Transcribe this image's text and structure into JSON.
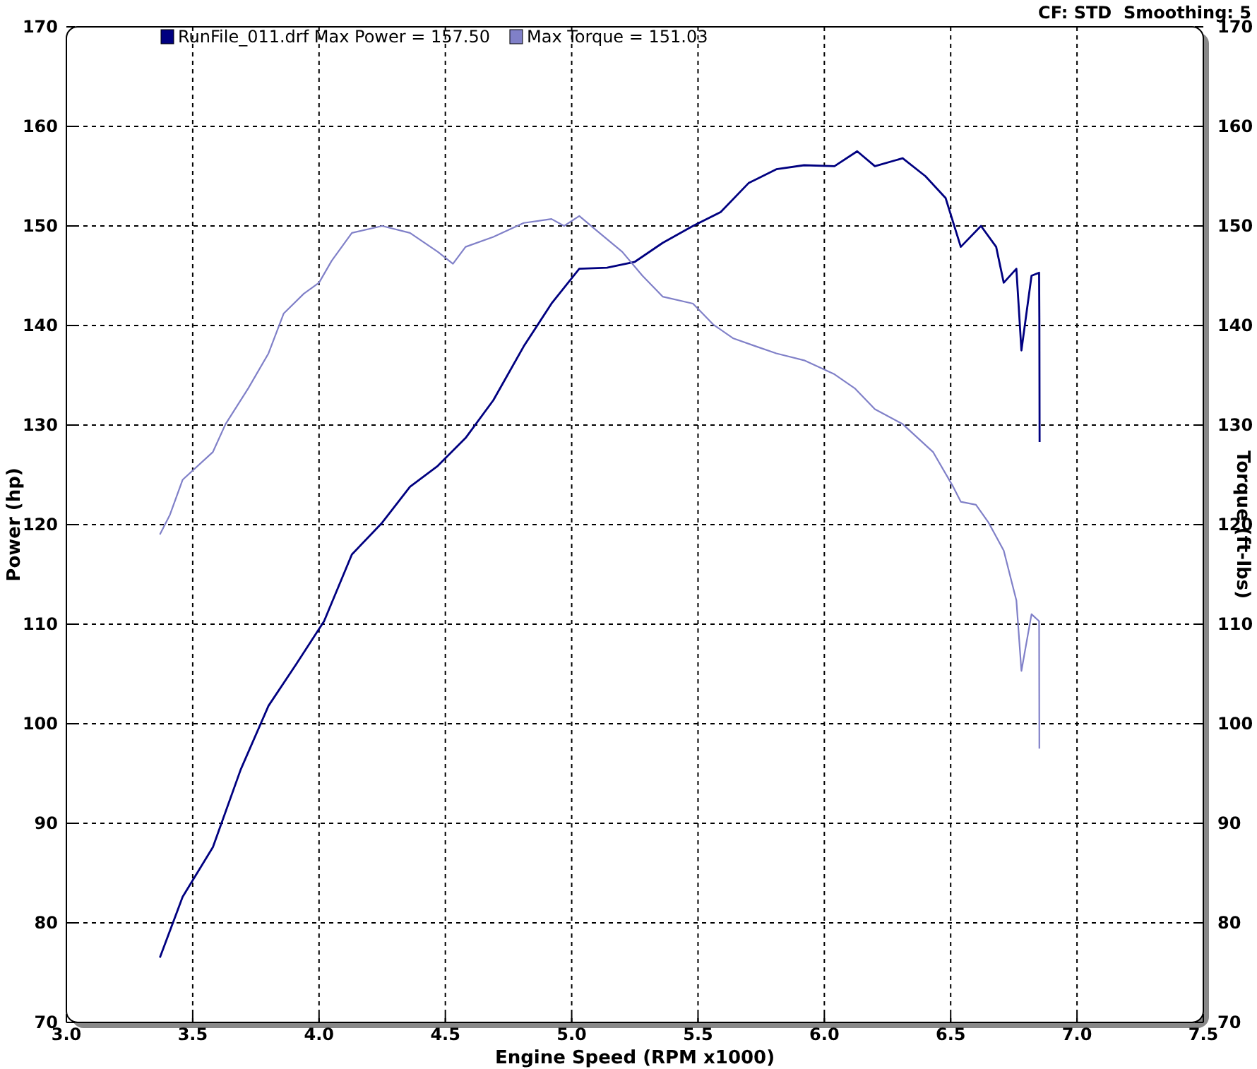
{
  "chart_data": {
    "type": "line",
    "xlabel": "Engine Speed (RPM x1000)",
    "ylabel": "Power (hp)",
    "y2label": "Torque (ft-lbs)",
    "annotations": [
      "CF: STD  Smoothing: 5"
    ],
    "xlim": [
      3.0,
      7.5
    ],
    "xticks": [
      {
        "value": 3.0,
        "label": "3.0"
      },
      {
        "value": 3.5,
        "label": "3.5"
      },
      {
        "value": 4.0,
        "label": "4.0"
      },
      {
        "value": 4.5,
        "label": "4.5"
      },
      {
        "value": 5.0,
        "label": "5.0"
      },
      {
        "value": 5.5,
        "label": "5.5"
      },
      {
        "value": 6.0,
        "label": "6.0"
      },
      {
        "value": 6.5,
        "label": "6.5"
      },
      {
        "value": 7.0,
        "label": "7.0"
      },
      {
        "value": 7.5,
        "label": "7.5"
      }
    ],
    "ylim": [
      70,
      170
    ],
    "yticks": [
      70,
      80,
      90,
      100,
      110,
      120,
      130,
      140,
      150,
      160,
      170
    ],
    "y2lim": [
      70,
      170
    ],
    "y2ticks": [
      70,
      80,
      90,
      100,
      110,
      120,
      130,
      140,
      150,
      160,
      170
    ],
    "grid": true,
    "legend": "top left",
    "line_style": "solid",
    "marker": "none",
    "series": [
      {
        "name": "RunFile_011.drf Max Power = 157.50",
        "color": "#000080",
        "x": [
          3.37,
          3.46,
          3.58,
          3.69,
          3.8,
          3.91,
          4.02,
          4.13,
          4.25,
          4.36,
          4.47,
          4.58,
          4.69,
          4.81,
          4.92,
          5.03,
          5.14,
          5.25,
          5.36,
          5.48,
          5.59,
          5.7,
          5.81,
          5.92,
          6.04,
          6.13,
          6.2,
          6.31,
          6.4,
          6.48,
          6.54,
          6.62,
          6.68,
          6.71,
          6.76,
          6.78,
          6.82,
          6.85,
          6.851,
          6.852
        ],
        "values": [
          76.5,
          82.6,
          87.6,
          95.4,
          101.8,
          106,
          110.3,
          117,
          120.2,
          123.8,
          125.9,
          128.7,
          132.5,
          137.9,
          142.2,
          145.7,
          145.8,
          146.4,
          148.3,
          150.0,
          151.4,
          154.3,
          155.7,
          156.1,
          156,
          157.5,
          156,
          156.8,
          155,
          152.8,
          147.9,
          150,
          147.9,
          144.3,
          145.7,
          137.5,
          145.0,
          145.3,
          140.8,
          128.3
        ]
      },
      {
        "name": "Max Torque = 151.03",
        "color": "#8080c8",
        "x": [
          3.37,
          3.41,
          3.46,
          3.58,
          3.63,
          3.72,
          3.8,
          3.86,
          3.94,
          4.0,
          4.05,
          4.13,
          4.25,
          4.36,
          4.47,
          4.53,
          4.58,
          4.69,
          4.81,
          4.92,
          4.97,
          5.03,
          5.11,
          5.2,
          5.28,
          5.36,
          5.48,
          5.56,
          5.64,
          5.73,
          5.81,
          5.92,
          6.04,
          6.12,
          6.2,
          6.31,
          6.43,
          6.51,
          6.54,
          6.6,
          6.65,
          6.71,
          6.76,
          6.78,
          6.82,
          6.85,
          6.851
        ],
        "values": [
          119,
          121,
          124.5,
          127.3,
          130.1,
          133.7,
          137.2,
          141.2,
          143.2,
          144.3,
          146.5,
          149.3,
          150,
          149.3,
          147.4,
          146.2,
          147.9,
          148.9,
          150.3,
          150.7,
          150,
          151.0,
          149.3,
          147.4,
          145,
          142.9,
          142.2,
          140.1,
          138.7,
          137.9,
          137.2,
          136.5,
          135.1,
          133.7,
          131.6,
          130.1,
          127.3,
          123.8,
          122.3,
          122.0,
          120.2,
          117.4,
          112.4,
          105.3,
          111.0,
          110.3,
          97.5
        ]
      }
    ]
  }
}
